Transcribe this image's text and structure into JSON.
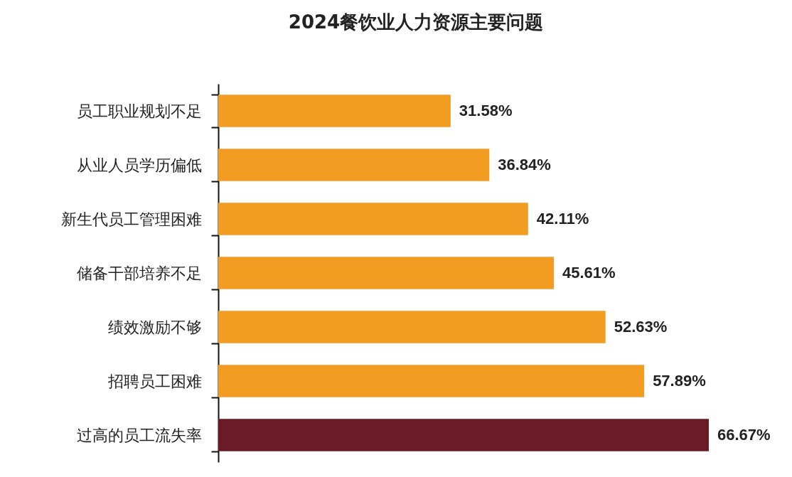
{
  "chart_data": {
    "type": "bar",
    "orientation": "horizontal",
    "title": "2024餐饮业人力资源主要问题",
    "categories": [
      "员工职业规划不足",
      "从业人员学历偏低",
      "新生代员工管理困难",
      "储备干部培养不足",
      "绩效激励不够",
      "招聘员工困难",
      "过高的员工流失率"
    ],
    "values": [
      31.58,
      36.84,
      42.11,
      45.61,
      52.63,
      57.89,
      66.67
    ],
    "value_labels": [
      "31.58%",
      "36.84%",
      "42.11%",
      "45.61%",
      "52.63%",
      "57.89%",
      "66.67%"
    ],
    "colors": [
      "#f39c22",
      "#f39c22",
      "#f39c22",
      "#f39c22",
      "#f39c22",
      "#f39c22",
      "#6b1b25"
    ],
    "tick_labels": "y",
    "grid": false
  }
}
